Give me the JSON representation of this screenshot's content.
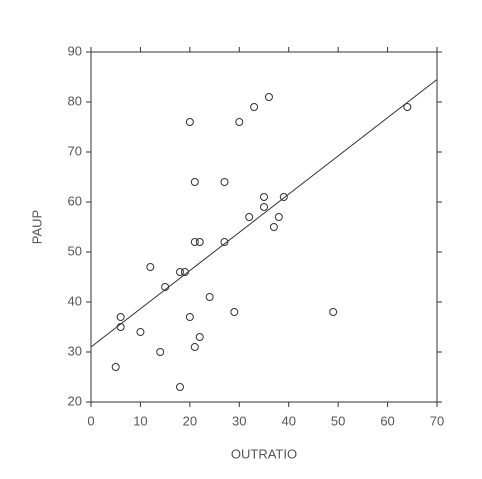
{
  "chart_data": {
    "type": "scatter",
    "x_label": "OUTRATIO",
    "y_label": "PAUP",
    "xlim": [
      0,
      70
    ],
    "ylim": [
      20,
      90
    ],
    "xticks": [
      0,
      10,
      20,
      30,
      40,
      50,
      60,
      70
    ],
    "yticks": [
      20,
      30,
      40,
      50,
      60,
      70,
      80,
      90
    ],
    "series": [
      {
        "color": "#333333",
        "x": [
          5,
          6,
          6,
          10,
          12,
          14,
          15,
          18,
          19,
          18,
          20,
          20,
          21,
          21,
          22,
          21,
          22,
          24,
          27,
          27,
          29,
          30,
          32,
          33,
          35,
          35,
          36,
          37,
          38,
          39,
          49,
          64
        ],
        "values": [
          27,
          37,
          35,
          34,
          47,
          30,
          43,
          46,
          46,
          23,
          76,
          37,
          64,
          52,
          52,
          31,
          33,
          41,
          64,
          52,
          38,
          76,
          57,
          79,
          61,
          59,
          81,
          55,
          57,
          61,
          38,
          79
        ]
      }
    ],
    "trend_line": {
      "color": "#333333",
      "x": [
        0,
        70
      ],
      "y": [
        31,
        84.5
      ]
    }
  }
}
